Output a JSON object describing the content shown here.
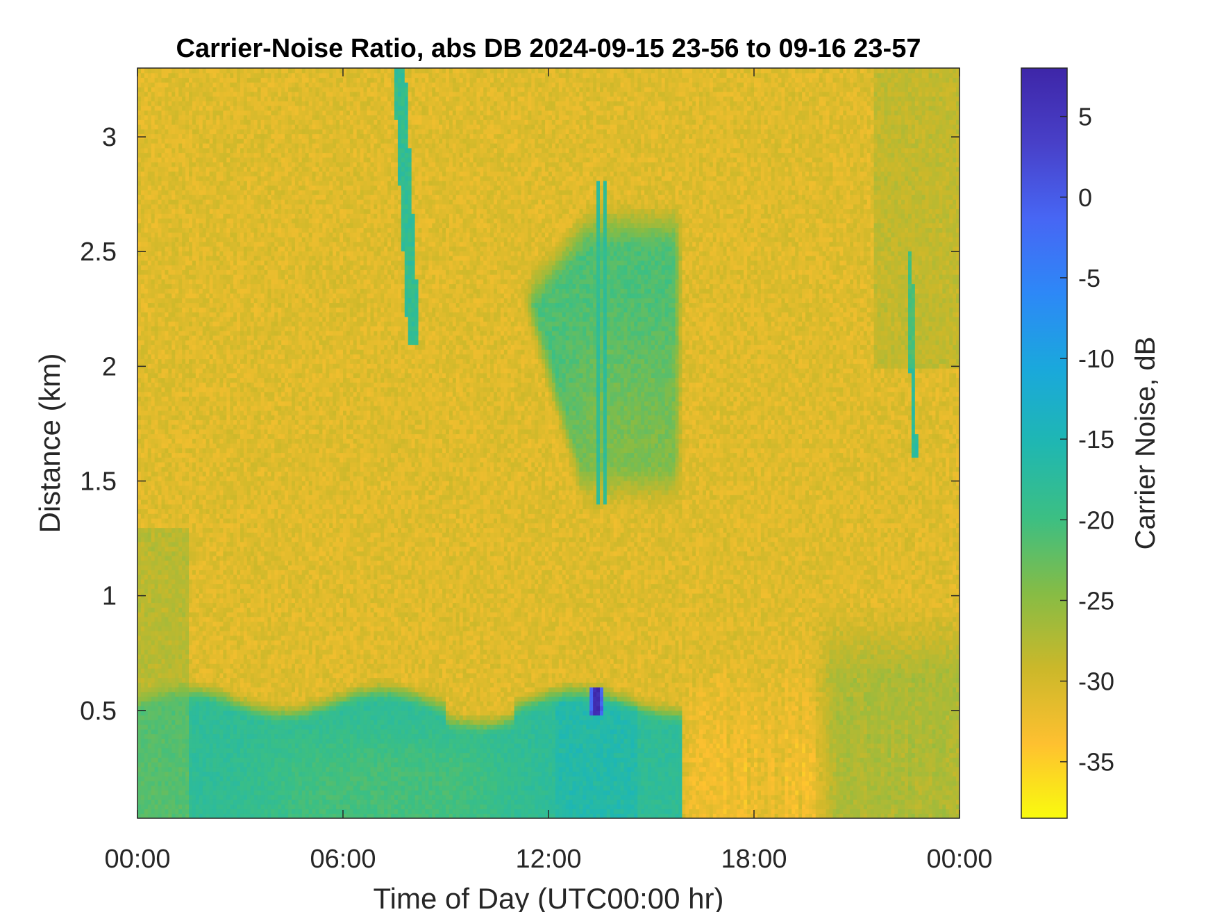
{
  "chart_data": {
    "type": "heatmap",
    "title": "Carrier-Noise Ratio, abs DB 2024-09-15 23-56 to 09-16 23-57",
    "xlabel": "Time of Day (UTC00:00 hr)",
    "ylabel": "Distance (km)",
    "colorbar_label": "Carrier Noise, dB",
    "x_range_hours": [
      0,
      24
    ],
    "y_range_km": [
      0.03,
      3.3
    ],
    "clim_db": [
      -38.5,
      8
    ],
    "x_ticks": [
      {
        "value": 0,
        "label": "00:00"
      },
      {
        "value": 6,
        "label": "06:00"
      },
      {
        "value": 12,
        "label": "12:00"
      },
      {
        "value": 18,
        "label": "18:00"
      },
      {
        "value": 24,
        "label": "00:00"
      }
    ],
    "y_ticks": [
      {
        "value": 0.5,
        "label": "0.5"
      },
      {
        "value": 1,
        "label": "1"
      },
      {
        "value": 1.5,
        "label": "1.5"
      },
      {
        "value": 2,
        "label": "2"
      },
      {
        "value": 2.5,
        "label": "2.5"
      },
      {
        "value": 3,
        "label": "3"
      }
    ],
    "colorbar_ticks": [
      {
        "value": 5,
        "label": "5"
      },
      {
        "value": 0,
        "label": "0"
      },
      {
        "value": -5,
        "label": "-5"
      },
      {
        "value": -10,
        "label": "-10"
      },
      {
        "value": -15,
        "label": "-15"
      },
      {
        "value": -20,
        "label": "-20"
      },
      {
        "value": -25,
        "label": "-25"
      },
      {
        "value": -30,
        "label": "-30"
      },
      {
        "value": -35,
        "label": "-35"
      }
    ],
    "colormap": "parula-reversed",
    "colormap_stops": [
      "#f9fb0e",
      "#fec030",
      "#cbb82a",
      "#86bc45",
      "#3cbf83",
      "#1fb7b2",
      "#1aa8dc",
      "#2d88f7",
      "#4766f4",
      "#4840c8",
      "#3e26a8"
    ],
    "background_db": -31,
    "features": [
      {
        "name": "boundary layer",
        "time_range_hours": [
          0,
          15.9
        ],
        "top_km": [
          0.55,
          0.65
        ],
        "value_db": -18
      },
      {
        "name": "low cloud",
        "time_range_hours": [
          12.2,
          14.4
        ],
        "range_km": [
          0.25,
          0.55
        ],
        "value_db": -15
      },
      {
        "name": "strong return",
        "time_range_hours": [
          13.2,
          13.6
        ],
        "range_km": [
          0.48,
          0.6
        ],
        "value_db": 5
      },
      {
        "name": "mid-level layer",
        "time_range_hours": [
          11.2,
          15.9
        ],
        "range_km": [
          1.3,
          2.8
        ],
        "value_db": -22
      },
      {
        "name": "fall streak",
        "time_range_hours": [
          7.6,
          8.2
        ],
        "range_km": [
          2.1,
          3.3
        ],
        "value_db": -20
      },
      {
        "name": "afternoon boundary layer",
        "time_range_hours": [
          19.5,
          24
        ],
        "range_km": [
          0.05,
          1.0
        ],
        "value_db": -25
      }
    ]
  }
}
